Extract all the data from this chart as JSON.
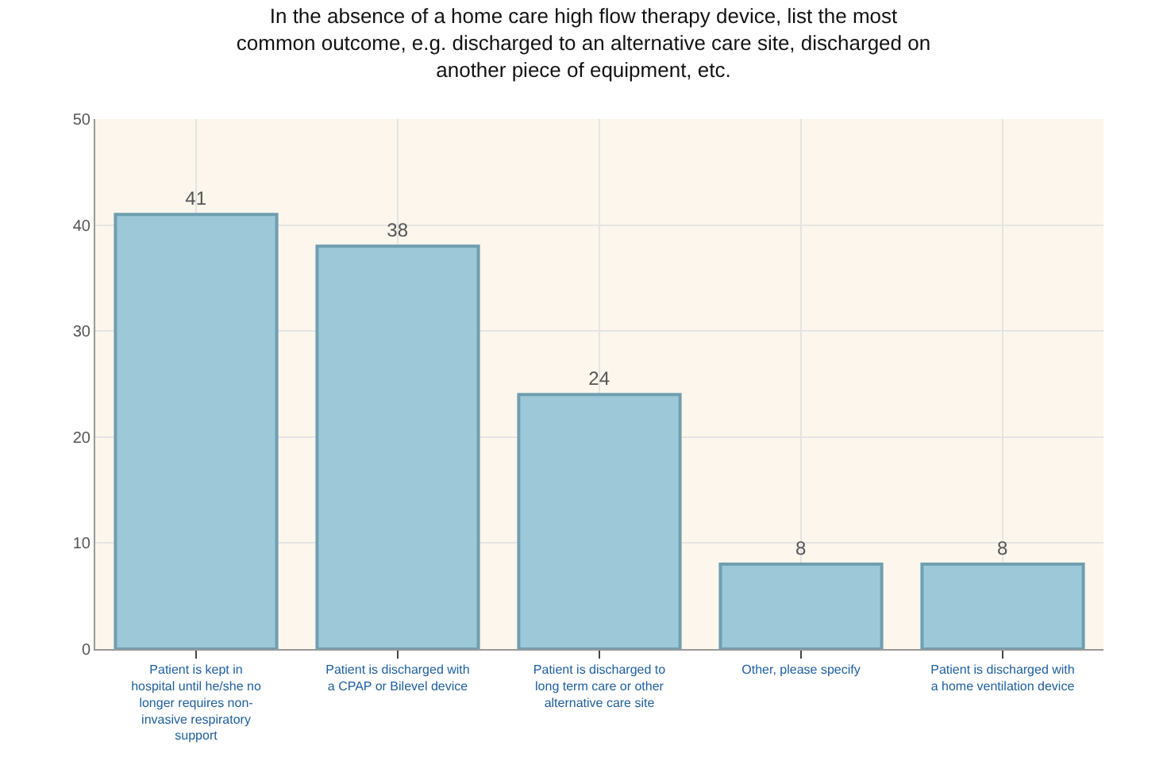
{
  "chart_data": {
    "type": "bar",
    "title": "In the absence of a home care high flow therapy device, list the most common outcome, e.g. discharged to an alternative care site, discharged on another piece of equipment, etc.",
    "categories": [
      "Patient is kept in hospital until he/she no longer requires non-invasive respiratory support",
      "Patient is discharged with a CPAP or Bilevel device",
      "Patient is discharged to long term care or other alternative care site",
      "Other, please specify",
      "Patient is discharged with a home ventilation device"
    ],
    "values": [
      41,
      38,
      24,
      8,
      8
    ],
    "color": "#9cc8d8",
    "ylim": [
      0,
      50
    ],
    "yticks": [
      0,
      10,
      20,
      30,
      40,
      50
    ],
    "grid": true,
    "data_labels": true
  }
}
